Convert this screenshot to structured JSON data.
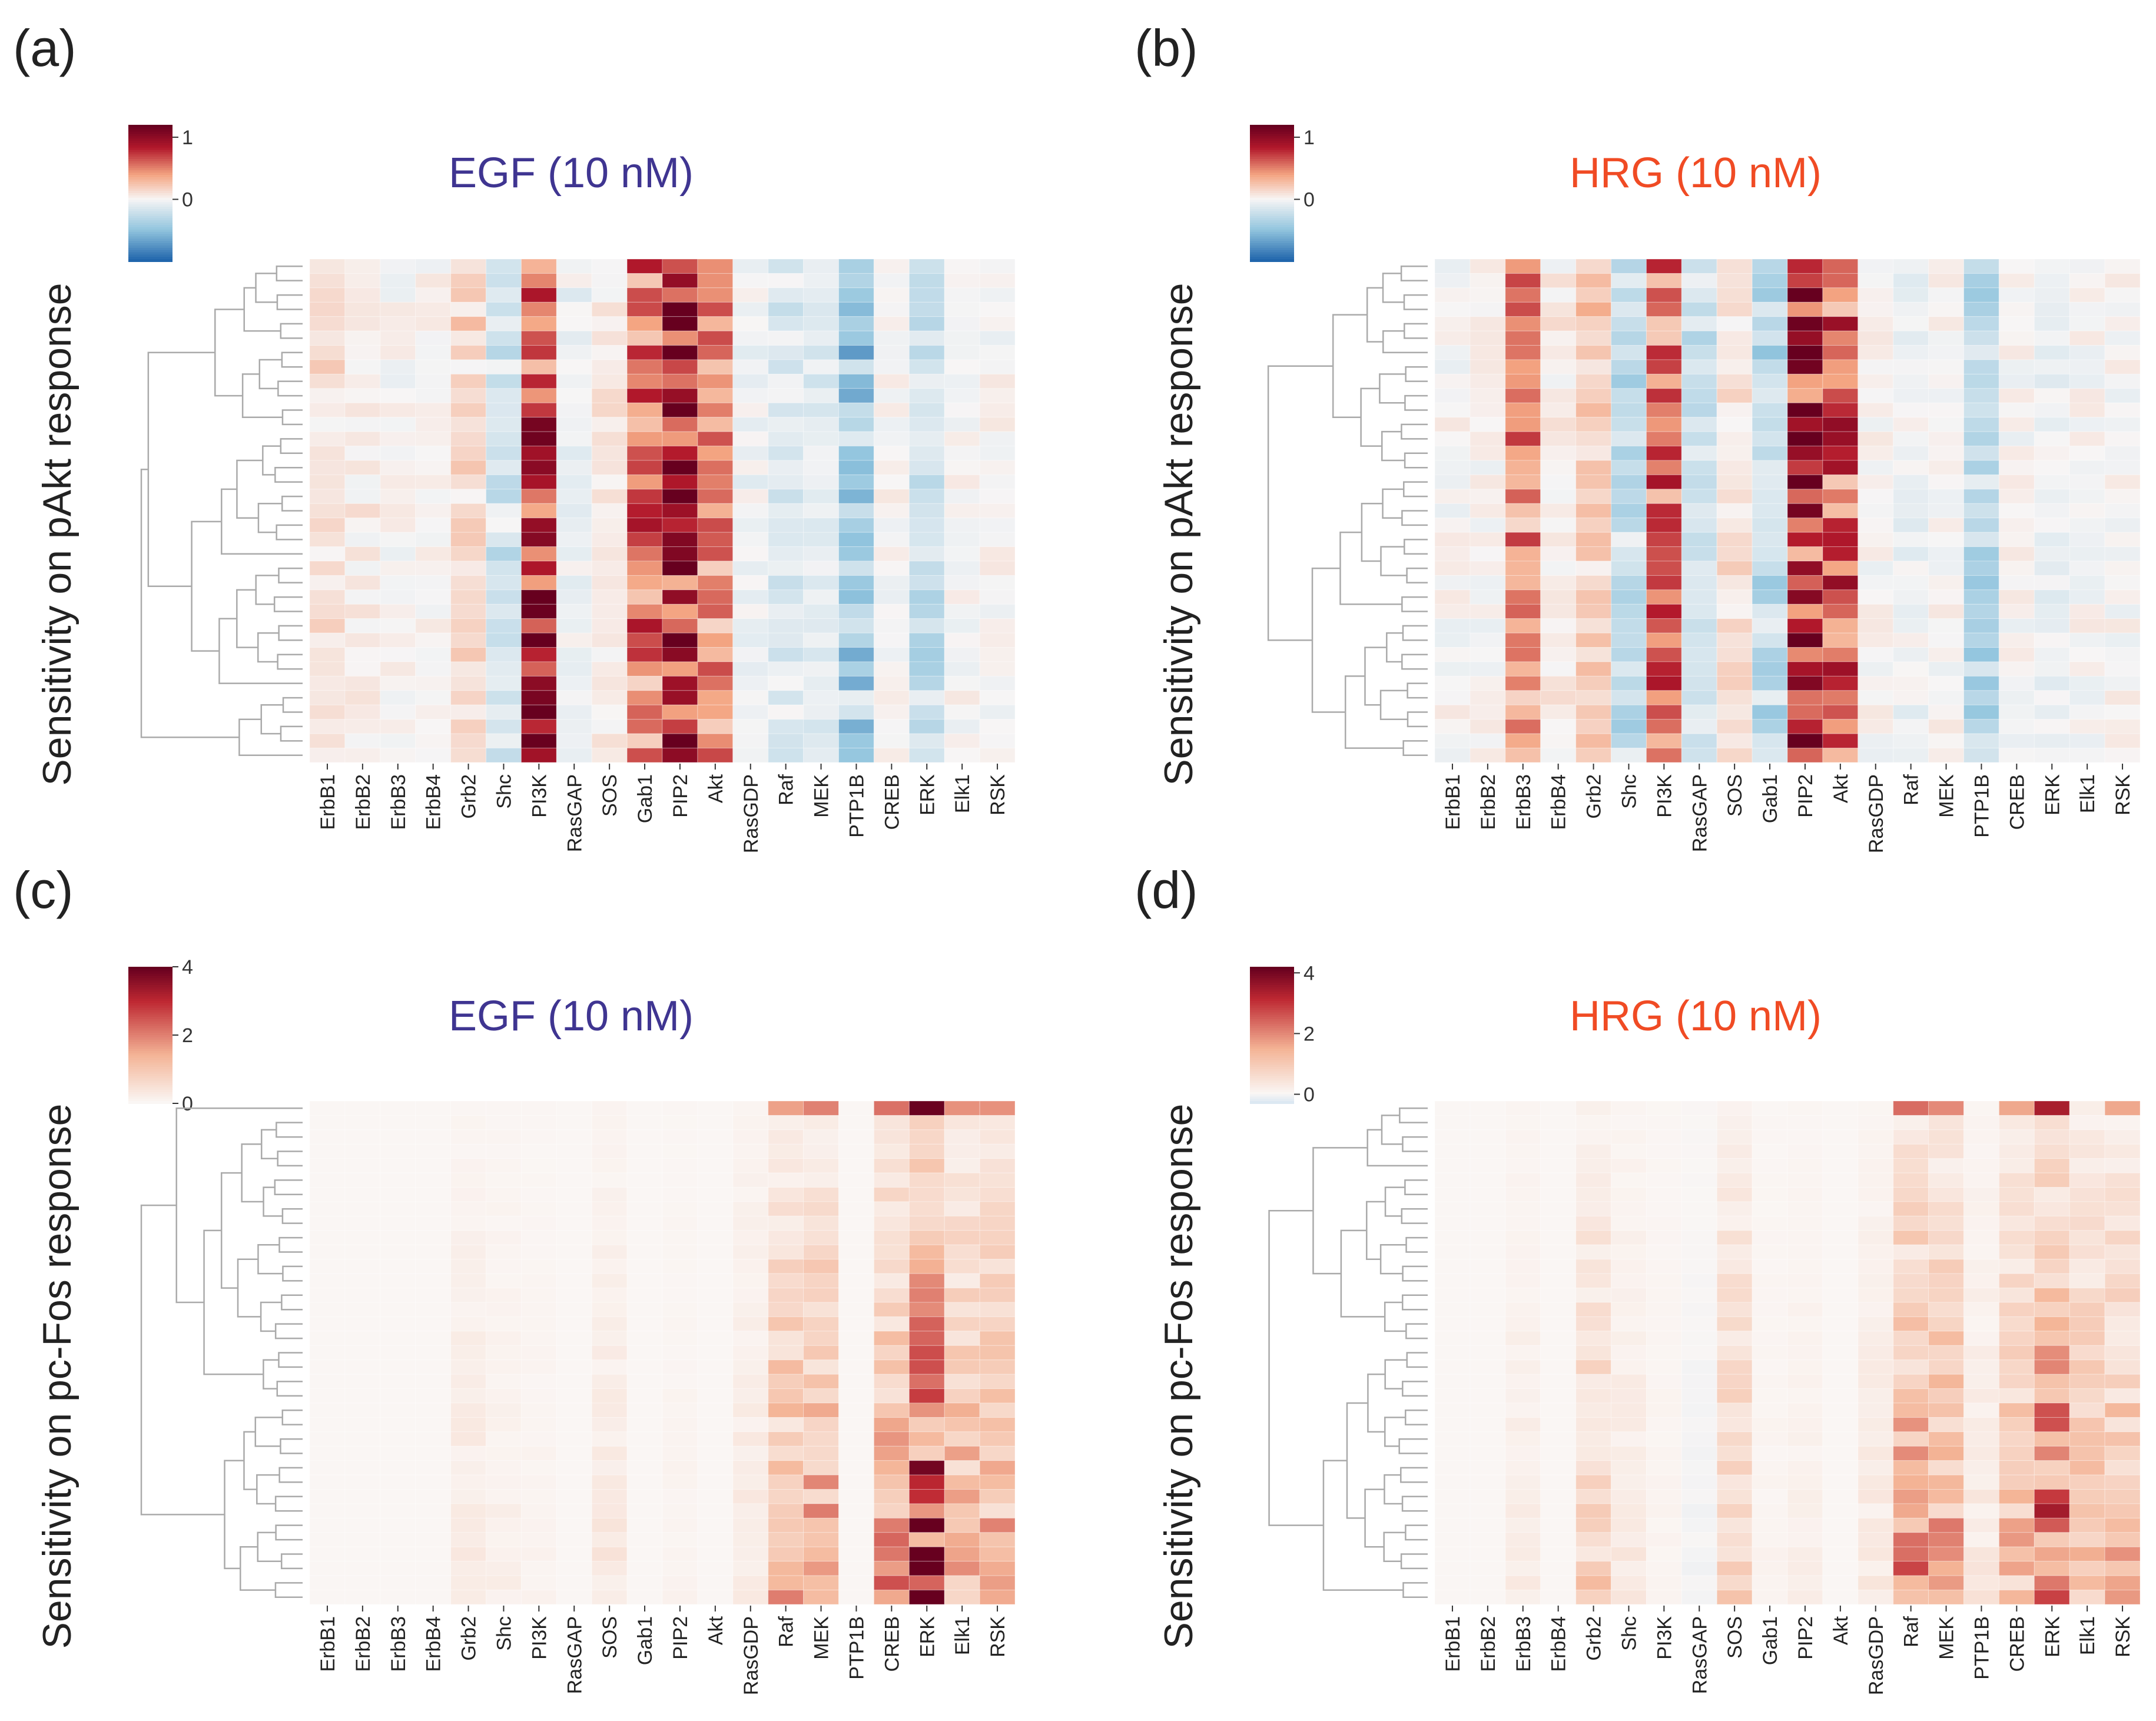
{
  "chart_data": [
    {
      "type": "heatmap",
      "panel_label": "(a)",
      "title": "EGF (10 nM)",
      "title_color": "#3f3591",
      "ylabel": "Sensitivity on pAkt response",
      "columns": [
        "ErbB1",
        "ErbB2",
        "ErbB3",
        "ErbB4",
        "Grb2",
        "Shc",
        "PI3K",
        "RasGAP",
        "SOS",
        "Gab1",
        "PIP2",
        "Akt",
        "RasGDP",
        "Raf",
        "MEK",
        "PTP1B",
        "CREB",
        "ERK",
        "Elk1",
        "RSK"
      ],
      "colorbar": {
        "ticks": [
          1,
          0
        ],
        "min": -1,
        "max": 1.2,
        "scale": "diverging"
      },
      "rows": 35,
      "row_groups": [
        6,
        6,
        9,
        9,
        5
      ],
      "column_profiles": [
        0.1,
        0.05,
        0,
        0,
        0.15,
        -0.2,
        0.9,
        -0.05,
        0.05,
        0.6,
        1.05,
        0.5,
        -0.05,
        -0.15,
        -0.1,
        -0.45,
        0,
        -0.25,
        0,
        0
      ]
    },
    {
      "type": "heatmap",
      "panel_label": "(b)",
      "title": "HRG (10 nM)",
      "title_color": "#f04b24",
      "ylabel": "Sensitivity on pAkt response",
      "columns": [
        "ErbB1",
        "ErbB2",
        "ErbB3",
        "ErbB4",
        "Grb2",
        "Shc",
        "PI3K",
        "RasGAP",
        "SOS",
        "Gab1",
        "PIP2",
        "Akt",
        "RasGDP",
        "Raf",
        "MEK",
        "PTP1B",
        "CREB",
        "ERK",
        "Elk1",
        "RSK"
      ],
      "colorbar": {
        "ticks": [
          1,
          0
        ],
        "min": -1,
        "max": 1.2,
        "scale": "diverging"
      },
      "rows": 35,
      "row_groups": [
        7,
        8,
        10,
        10
      ],
      "column_profiles": [
        0,
        0,
        0.45,
        0.05,
        0.2,
        -0.25,
        0.6,
        -0.2,
        0.1,
        -0.3,
        1.05,
        0.65,
        0,
        -0.05,
        0,
        -0.3,
        0,
        -0.05,
        0,
        0
      ]
    },
    {
      "type": "heatmap",
      "panel_label": "(c)",
      "title": "EGF (10 nM)",
      "title_color": "#3f3591",
      "ylabel": "Sensitivity on pc-Fos response",
      "columns": [
        "ErbB1",
        "ErbB2",
        "ErbB3",
        "ErbB4",
        "Grb2",
        "Shc",
        "PI3K",
        "RasGAP",
        "SOS",
        "Gab1",
        "PIP2",
        "Akt",
        "RasGDP",
        "Raf",
        "MEK",
        "PTP1B",
        "CREB",
        "ERK",
        "Elk1",
        "RSK"
      ],
      "colorbar": {
        "ticks": [
          4,
          2,
          0
        ],
        "min": 0,
        "max": 4,
        "scale": "sequential"
      },
      "rows": 35,
      "row_groups": [
        1,
        20,
        14
      ],
      "column_profiles": [
        0,
        0,
        0,
        0,
        0.2,
        0.1,
        0.05,
        0,
        0.2,
        0,
        0.05,
        0,
        0.2,
        0.9,
        1.1,
        0,
        1.2,
        2.2,
        1.0,
        1.0
      ]
    },
    {
      "type": "heatmap",
      "panel_label": "(d)",
      "title": "HRG (10 nM)",
      "title_color": "#f04b24",
      "ylabel": "Sensitivity on pc-Fos response",
      "columns": [
        "ErbB1",
        "ErbB2",
        "ErbB3",
        "ErbB4",
        "Grb2",
        "Shc",
        "PI3K",
        "RasGAP",
        "SOS",
        "Gab1",
        "PIP2",
        "Akt",
        "RasGDP",
        "Raf",
        "MEK",
        "PTP1B",
        "CREB",
        "ERK",
        "Elk1",
        "RSK"
      ],
      "colorbar": {
        "ticks": [
          4,
          2,
          0
        ],
        "min": -0.3,
        "max": 4.2,
        "scale": "sequential"
      },
      "rows": 35,
      "row_groups": [
        5,
        12,
        18
      ],
      "column_profiles": [
        0,
        0,
        0.15,
        0,
        0.6,
        0.2,
        0.05,
        -0.05,
        0.6,
        0.05,
        0.1,
        0,
        0.2,
        1.3,
        1.1,
        0.2,
        0.9,
        1.9,
        0.8,
        0.9
      ]
    }
  ]
}
